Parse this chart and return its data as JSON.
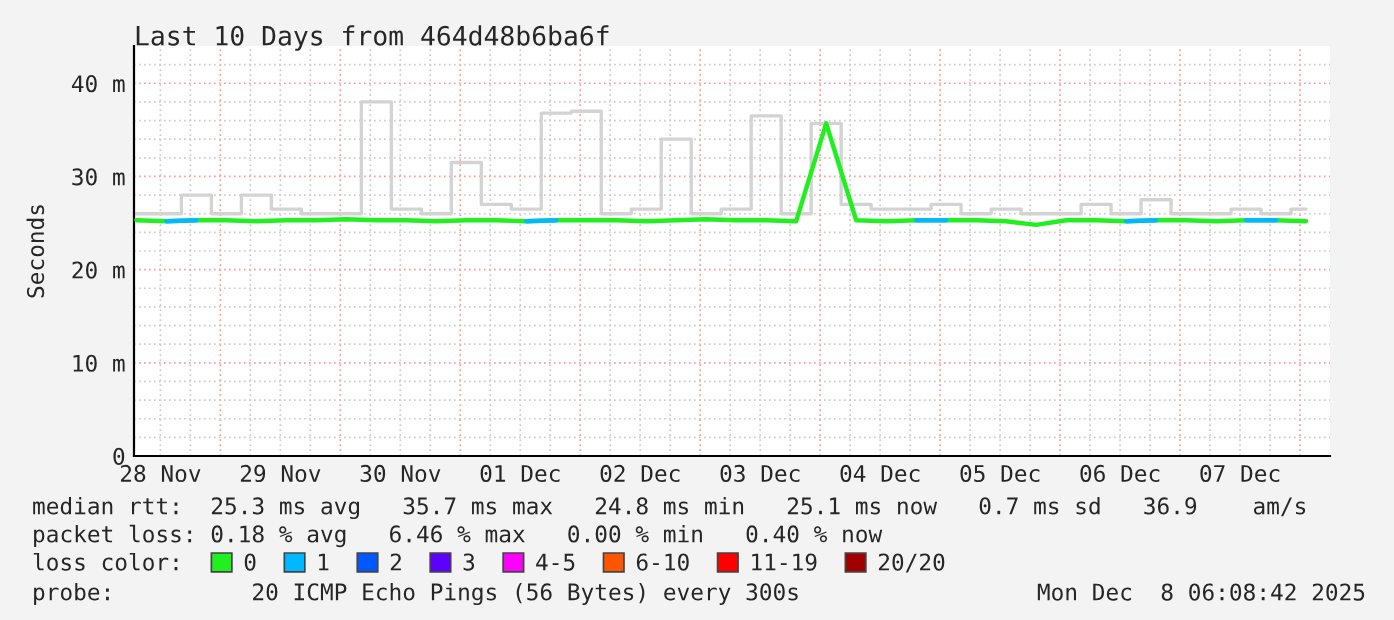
{
  "chart_data": {
    "type": "line",
    "title": "Last 10 Days from 464d48b6ba6f",
    "ylabel": "Seconds",
    "x": [
      "2025-11-28T07:12",
      "2025-11-28T13:12",
      "2025-11-28T19:12",
      "2025-11-29T01:12",
      "2025-11-29T07:12",
      "2025-11-29T13:12",
      "2025-11-29T19:12",
      "2025-11-30T01:12",
      "2025-11-30T07:12",
      "2025-11-30T13:12",
      "2025-11-30T19:12",
      "2025-12-01T01:12",
      "2025-12-01T07:12",
      "2025-12-01T13:12",
      "2025-12-01T19:12",
      "2025-12-02T01:12",
      "2025-12-02T07:12",
      "2025-12-02T13:12",
      "2025-12-02T19:12",
      "2025-12-03T01:12",
      "2025-12-03T07:12",
      "2025-12-03T13:12",
      "2025-12-03T19:12",
      "2025-12-04T01:12",
      "2025-12-04T07:12",
      "2025-12-04T13:12",
      "2025-12-04T19:12",
      "2025-12-05T01:12",
      "2025-12-05T07:12",
      "2025-12-05T13:12",
      "2025-12-05T19:12",
      "2025-12-06T01:12",
      "2025-12-06T07:12",
      "2025-12-06T13:12",
      "2025-12-06T19:12",
      "2025-12-07T01:12",
      "2025-12-07T07:12",
      "2025-12-07T13:12",
      "2025-12-07T19:12",
      "2025-12-08T01:12"
    ],
    "xlim": [
      "2025-11-28T06:43",
      "2025-12-08T06:00"
    ],
    "xticks": [
      {
        "value": "2025-11-28T12:00",
        "label": "28 Nov"
      },
      {
        "value": "2025-11-29T12:00",
        "label": "29 Nov"
      },
      {
        "value": "2025-11-30T12:00",
        "label": "30 Nov"
      },
      {
        "value": "2025-12-01T12:00",
        "label": "01 Dec"
      },
      {
        "value": "2025-12-02T12:00",
        "label": "02 Dec"
      },
      {
        "value": "2025-12-03T12:00",
        "label": "03 Dec"
      },
      {
        "value": "2025-12-04T12:00",
        "label": "04 Dec"
      },
      {
        "value": "2025-12-05T12:00",
        "label": "05 Dec"
      },
      {
        "value": "2025-12-06T12:00",
        "label": "06 Dec"
      },
      {
        "value": "2025-12-07T12:00",
        "label": "07 Dec"
      }
    ],
    "ylim": [
      0,
      44
    ],
    "yticks": [
      0,
      {
        "value": 10,
        "label": "10 m"
      },
      {
        "value": 20,
        "label": "20 m"
      },
      {
        "value": 30,
        "label": "30 m"
      },
      {
        "value": 40,
        "label": "40 m"
      }
    ],
    "series": [
      {
        "type": "step",
        "color": "#d3d3d3",
        "values": [
          26,
          26,
          28,
          26,
          28,
          26.5,
          26,
          26,
          38,
          26.5,
          26,
          31.5,
          27,
          26.5,
          36.8,
          37,
          26,
          26.5,
          34,
          26,
          26.5,
          36.5,
          26,
          35.7,
          27,
          26.5,
          26.5,
          27,
          26,
          26.5,
          26,
          26,
          27,
          26,
          27.5,
          26,
          26,
          26.5,
          26,
          26.5
        ]
      },
      {
        "name": "0",
        "color": "#20f020",
        "values": [
          25.3,
          25.2,
          25.3,
          25.3,
          25.2,
          25.3,
          25.3,
          25.4,
          25.3,
          25.3,
          25.2,
          25.3,
          25.3,
          25.2,
          25.3,
          25.3,
          25.3,
          25.2,
          25.3,
          25.4,
          25.3,
          25.3,
          25.2,
          35.7,
          25.3,
          25.2,
          25.3,
          25.3,
          25.3,
          25.2,
          24.8,
          25.3,
          25.3,
          25.2,
          25.3,
          25.3,
          25.2,
          25.3,
          25.3,
          25.2
        ]
      },
      {
        "name": "1",
        "color": "#00b8ff",
        "values": [
          null,
          25.2,
          25.3,
          null,
          null,
          null,
          null,
          null,
          null,
          null,
          null,
          null,
          null,
          25.2,
          25.3,
          null,
          null,
          null,
          null,
          null,
          null,
          null,
          null,
          null,
          null,
          null,
          25.3,
          25.3,
          null,
          null,
          null,
          null,
          null,
          25.2,
          25.3,
          null,
          null,
          25.3,
          25.3,
          null
        ]
      },
      {
        "name": "2",
        "color": "#0059ff",
        "values": [
          null,
          null,
          null,
          null,
          null,
          null,
          null,
          null,
          null,
          null,
          null,
          null,
          null,
          null,
          null,
          null,
          null,
          null,
          null,
          null,
          null,
          null,
          null,
          null,
          null,
          null,
          null,
          null,
          null,
          null,
          null,
          null,
          null,
          null,
          null,
          null,
          null,
          null,
          null,
          null
        ]
      },
      {
        "name": "3",
        "color": "#5e00ff",
        "values": [
          null,
          null,
          null,
          null,
          null,
          null,
          null,
          null,
          null,
          null,
          null,
          null,
          null,
          null,
          null,
          null,
          null,
          null,
          null,
          null,
          null,
          null,
          null,
          null,
          null,
          null,
          null,
          null,
          null,
          null,
          null,
          null,
          null,
          null,
          null,
          null,
          null,
          null,
          null,
          null
        ]
      },
      {
        "name": "4-5",
        "color": "#ff00fe",
        "values": [
          null,
          null,
          null,
          null,
          null,
          null,
          null,
          null,
          null,
          null,
          null,
          null,
          null,
          null,
          null,
          null,
          null,
          null,
          null,
          null,
          null,
          null,
          null,
          null,
          null,
          null,
          null,
          null,
          null,
          null,
          null,
          null,
          null,
          null,
          null,
          null,
          null,
          null,
          null,
          null
        ]
      },
      {
        "name": "6-10",
        "color": "#ff5500",
        "values": [
          null,
          null,
          null,
          null,
          null,
          null,
          null,
          null,
          null,
          null,
          null,
          null,
          null,
          null,
          null,
          null,
          null,
          null,
          null,
          null,
          null,
          null,
          null,
          null,
          null,
          null,
          null,
          null,
          null,
          null,
          null,
          null,
          null,
          null,
          null,
          null,
          null,
          null,
          null,
          null
        ]
      },
      {
        "name": "11-19",
        "color": "#ff0000",
        "values": [
          null,
          null,
          null,
          null,
          null,
          null,
          null,
          null,
          null,
          null,
          null,
          null,
          null,
          null,
          null,
          null,
          null,
          null,
          null,
          null,
          null,
          null,
          null,
          null,
          null,
          null,
          null,
          null,
          null,
          null,
          null,
          null,
          null,
          null,
          null,
          null,
          null,
          null,
          null,
          null
        ]
      },
      {
        "name": "20/20",
        "color": "#a10000",
        "values": [
          null,
          null,
          null,
          null,
          null,
          null,
          null,
          null,
          null,
          null,
          null,
          null,
          null,
          null,
          null,
          null,
          null,
          null,
          null,
          null,
          null,
          null,
          null,
          null,
          null,
          null,
          null,
          null,
          null,
          null,
          null,
          null,
          null,
          null,
          null,
          null,
          null,
          null,
          null,
          null
        ]
      }
    ],
    "legend": "bottom",
    "legend_title": "loss color:",
    "grid": true,
    "annotations": [
      "median rtt:  25.3 ms avg   35.7 ms max   24.8 ms min   25.1 ms now   0.7 ms sd   36.9    am/s",
      "packet loss: 0.18 % avg   6.46 % max   0.00 % min   0.40 % now",
      "probe:          20 ICMP Echo Pings (56 Bytes) every 300s",
      "Mon Dec  8 06:08:42 2025"
    ]
  }
}
